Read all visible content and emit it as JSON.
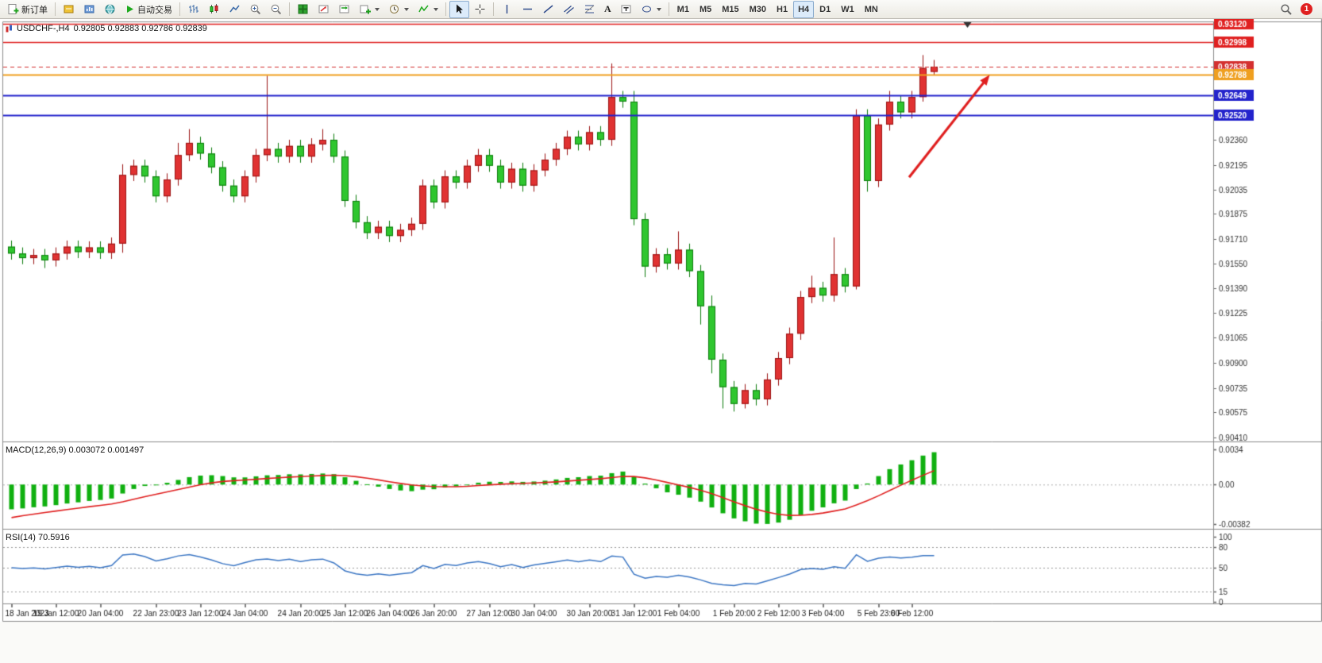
{
  "toolbar": {
    "new_order_label": "新订单",
    "autotrading_label": "自动交易",
    "text_tool_label": "A",
    "timeframes": [
      "M1",
      "M5",
      "M15",
      "M30",
      "H1",
      "H4",
      "D1",
      "W1",
      "MN"
    ],
    "active_timeframe": "H4",
    "notification_count": "1"
  },
  "chart": {
    "title": "USDCHF-,H4",
    "ohlc": "0.92805 0.92883 0.92786 0.92839",
    "macd_title": "MACD(12,26,9) 0.003072 0.001497",
    "rsi_title": "RSI(14) 70.5916"
  },
  "chart_data": [
    {
      "type": "candlestick",
      "symbol": "USDCHF-",
      "timeframe": "H4",
      "up_color": "#e03232",
      "up_border": "#9a1212",
      "down_color": "#2fc62f",
      "down_border": "#0c7c0c",
      "price_min": 0.90384,
      "price_max": 0.9313,
      "y_labels": [
        "0.92360",
        "0.92195",
        "0.92035",
        "0.91875",
        "0.91710",
        "0.91550",
        "0.91390",
        "0.91225",
        "0.91065",
        "0.90900",
        "0.90735",
        "0.90575",
        "0.90410"
      ],
      "levels": [
        {
          "price": 0.9312,
          "label": "0.93120",
          "color": "#e02020",
          "width": 1.4,
          "style": "solid"
        },
        {
          "price": 0.92998,
          "label": "0.92998",
          "color": "#e02020",
          "width": 1.4,
          "style": "solid"
        },
        {
          "price": 0.92838,
          "label": "0.92838",
          "color": "#d43030",
          "width": 1,
          "style": "dashed"
        },
        {
          "price": 0.92788,
          "label": "0.92788",
          "color": "#ef9f1f",
          "width": 2,
          "style": "solid"
        },
        {
          "price": 0.92649,
          "label": "0.92649",
          "color": "#2323cc",
          "width": 2,
          "style": "solid"
        },
        {
          "price": 0.9252,
          "label": "0.92520",
          "color": "#2323cc",
          "width": 2,
          "style": "solid"
        }
      ],
      "shift_marker_i": 86,
      "annotations": [
        {
          "type": "arrow",
          "color": "#e01f1f",
          "from": {
            "i": 80.75,
            "price": 0.92115
          },
          "to": {
            "i": 88,
            "price": 0.92785
          }
        }
      ],
      "time_labels": [
        {
          "t": "18 Jan 2023",
          "i": 0
        },
        {
          "t": "19 Jan 12:00",
          "i": 4
        },
        {
          "t": "20 Jan 04:00",
          "i": 8
        },
        {
          "t": "22 Jan 23:00",
          "i": 13
        },
        {
          "t": "23 Jan 12:00",
          "i": 17
        },
        {
          "t": "24 Jan 04:00",
          "i": 21
        },
        {
          "t": "24 Jan 20:00",
          "i": 26
        },
        {
          "t": "25 Jan 12:00",
          "i": 30
        },
        {
          "t": "26 Jan 04:00",
          "i": 34
        },
        {
          "t": "26 Jan 20:00",
          "i": 38
        },
        {
          "t": "27 Jan 12:00",
          "i": 43
        },
        {
          "t": "30 Jan 04:00",
          "i": 47
        },
        {
          "t": "30 Jan 20:00",
          "i": 52
        },
        {
          "t": "31 Jan 12:00",
          "i": 56
        },
        {
          "t": "1 Feb 04:00",
          "i": 60
        },
        {
          "t": "1 Feb 20:00",
          "i": 65
        },
        {
          "t": "2 Feb 12:00",
          "i": 69
        },
        {
          "t": "3 Feb 04:00",
          "i": 73
        },
        {
          "t": "5 Feb 23:00",
          "i": 78
        },
        {
          "t": "6 Feb 12:00",
          "i": 81
        }
      ],
      "candles": [
        [
          0.9166,
          0.917,
          0.91575,
          0.91615
        ],
        [
          0.91615,
          0.91655,
          0.91545,
          0.91585
        ],
        [
          0.91585,
          0.91645,
          0.91545,
          0.91605
        ],
        [
          0.91605,
          0.91645,
          0.9152,
          0.9157
        ],
        [
          0.9157,
          0.91655,
          0.9153,
          0.91615
        ],
        [
          0.91615,
          0.917,
          0.91575,
          0.9166
        ],
        [
          0.9166,
          0.917,
          0.91585,
          0.91625
        ],
        [
          0.91625,
          0.91695,
          0.91585,
          0.91655
        ],
        [
          0.91655,
          0.91695,
          0.9158,
          0.9162
        ],
        [
          0.9162,
          0.9172,
          0.9158,
          0.9168
        ],
        [
          0.9168,
          0.922,
          0.9162,
          0.9213
        ],
        [
          0.9213,
          0.9223,
          0.9209,
          0.9219
        ],
        [
          0.9219,
          0.9223,
          0.9208,
          0.9212
        ],
        [
          0.9212,
          0.9216,
          0.9195,
          0.9199
        ],
        [
          0.9199,
          0.9214,
          0.9195,
          0.921
        ],
        [
          0.921,
          0.9234,
          0.9206,
          0.9226
        ],
        [
          0.9226,
          0.9243,
          0.9222,
          0.9234
        ],
        [
          0.9234,
          0.9238,
          0.9223,
          0.9227
        ],
        [
          0.9227,
          0.9231,
          0.9214,
          0.9218
        ],
        [
          0.9218,
          0.9222,
          0.9202,
          0.9206
        ],
        [
          0.9206,
          0.921,
          0.9195,
          0.9199
        ],
        [
          0.9199,
          0.9216,
          0.9195,
          0.9212
        ],
        [
          0.9212,
          0.923,
          0.9208,
          0.9226
        ],
        [
          0.9226,
          0.9278,
          0.9222,
          0.923
        ],
        [
          0.923,
          0.9234,
          0.9221,
          0.9225
        ],
        [
          0.9225,
          0.9236,
          0.9221,
          0.9232
        ],
        [
          0.9232,
          0.9236,
          0.9221,
          0.9225
        ],
        [
          0.9225,
          0.9237,
          0.9221,
          0.9233
        ],
        [
          0.9233,
          0.9243,
          0.9229,
          0.9236
        ],
        [
          0.9236,
          0.924,
          0.9221,
          0.9225
        ],
        [
          0.9225,
          0.9229,
          0.9192,
          0.9196
        ],
        [
          0.9196,
          0.92,
          0.9178,
          0.9182
        ],
        [
          0.9182,
          0.9186,
          0.9171,
          0.9175
        ],
        [
          0.9175,
          0.9183,
          0.9171,
          0.9179
        ],
        [
          0.9179,
          0.9183,
          0.9169,
          0.9173
        ],
        [
          0.9173,
          0.9181,
          0.9169,
          0.9177
        ],
        [
          0.9177,
          0.9185,
          0.9173,
          0.9181
        ],
        [
          0.9181,
          0.921,
          0.9177,
          0.9206
        ],
        [
          0.9206,
          0.921,
          0.9191,
          0.9195
        ],
        [
          0.9195,
          0.9216,
          0.9191,
          0.9212
        ],
        [
          0.9212,
          0.9216,
          0.9204,
          0.9208
        ],
        [
          0.9208,
          0.9223,
          0.9204,
          0.9219
        ],
        [
          0.9219,
          0.923,
          0.9215,
          0.9226
        ],
        [
          0.9226,
          0.923,
          0.9215,
          0.9219
        ],
        [
          0.9219,
          0.9223,
          0.9204,
          0.9208
        ],
        [
          0.9208,
          0.9221,
          0.9204,
          0.9217
        ],
        [
          0.9217,
          0.9221,
          0.9202,
          0.9206
        ],
        [
          0.9206,
          0.922,
          0.9202,
          0.9216
        ],
        [
          0.9216,
          0.9227,
          0.9212,
          0.9223
        ],
        [
          0.9223,
          0.9234,
          0.9219,
          0.923
        ],
        [
          0.923,
          0.9242,
          0.9226,
          0.9238
        ],
        [
          0.9238,
          0.9242,
          0.9229,
          0.9233
        ],
        [
          0.9233,
          0.9245,
          0.9229,
          0.9241
        ],
        [
          0.9241,
          0.9245,
          0.9232,
          0.9236
        ],
        [
          0.9236,
          0.9286,
          0.9232,
          0.9264
        ],
        [
          0.9264,
          0.9268,
          0.9257,
          0.9261
        ],
        [
          0.9261,
          0.9268,
          0.918,
          0.9184
        ],
        [
          0.9184,
          0.9188,
          0.9146,
          0.9153
        ],
        [
          0.9153,
          0.9165,
          0.9149,
          0.9161
        ],
        [
          0.9161,
          0.9165,
          0.9151,
          0.9155
        ],
        [
          0.9155,
          0.9176,
          0.9151,
          0.9164
        ],
        [
          0.9164,
          0.9168,
          0.9146,
          0.915
        ],
        [
          0.915,
          0.9154,
          0.9115,
          0.9127
        ],
        [
          0.9127,
          0.9134,
          0.9083,
          0.9092
        ],
        [
          0.9092,
          0.9096,
          0.906,
          0.9074
        ],
        [
          0.9074,
          0.9078,
          0.9058,
          0.9063
        ],
        [
          0.9063,
          0.9076,
          0.906,
          0.9072
        ],
        [
          0.9072,
          0.9076,
          0.9062,
          0.9066
        ],
        [
          0.9066,
          0.9083,
          0.9062,
          0.9079
        ],
        [
          0.9079,
          0.9097,
          0.9075,
          0.9093
        ],
        [
          0.9093,
          0.9113,
          0.9089,
          0.9109
        ],
        [
          0.9109,
          0.9137,
          0.9105,
          0.9133
        ],
        [
          0.9133,
          0.9147,
          0.9129,
          0.9139
        ],
        [
          0.9139,
          0.9143,
          0.913,
          0.9134
        ],
        [
          0.9134,
          0.9172,
          0.913,
          0.9148
        ],
        [
          0.9148,
          0.9152,
          0.9136,
          0.914
        ],
        [
          0.914,
          0.9256,
          0.9138,
          0.9252
        ],
        [
          0.9252,
          0.9256,
          0.9202,
          0.9209
        ],
        [
          0.9209,
          0.925,
          0.9205,
          0.9246
        ],
        [
          0.9246,
          0.9268,
          0.9242,
          0.9261
        ],
        [
          0.9261,
          0.9265,
          0.925,
          0.9254
        ],
        [
          0.9254,
          0.9268,
          0.925,
          0.9264
        ],
        [
          0.9264,
          0.92915,
          0.9261,
          0.9283
        ],
        [
          0.92805,
          0.92883,
          0.92786,
          0.92839
        ]
      ]
    },
    {
      "type": "macd",
      "params": "12,26,9",
      "main_value": 0.003072,
      "signal_value": 0.001497,
      "range": {
        "min": -0.00382,
        "max": 0.0034
      },
      "histogram_color": "#10b010",
      "signal_color": "#e02020",
      "y_labels": [
        {
          "v": 0.0034,
          "t": "0.0034"
        },
        {
          "v": 0,
          "t": "0.00"
        },
        {
          "v": -0.00382,
          "t": "-0.00382"
        }
      ]
    },
    {
      "type": "rsi",
      "period": 14,
      "value": 70.5916,
      "color": "#3b76c4",
      "range": {
        "min": 0,
        "max": 100
      },
      "levels": [
        80,
        50,
        15
      ],
      "y_labels": [
        {
          "v": 100,
          "t": "100"
        },
        {
          "v": 80,
          "t": "80"
        },
        {
          "v": 50,
          "t": "50"
        },
        {
          "v": 15,
          "t": "15"
        },
        {
          "v": 0,
          "t": "0"
        }
      ]
    }
  ]
}
